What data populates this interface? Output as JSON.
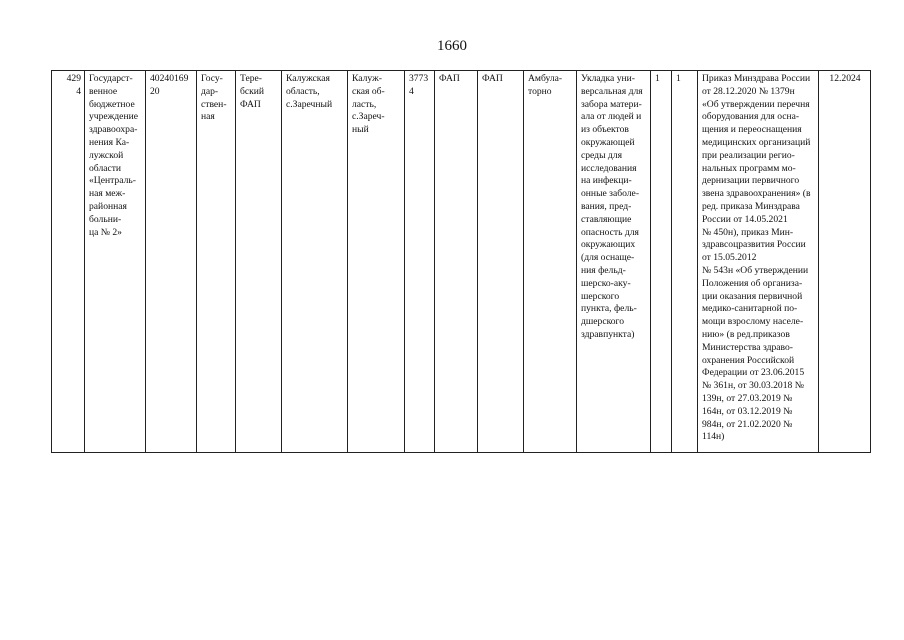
{
  "page_number": "1660",
  "row": {
    "cells": [
      "429\n4",
      "Государст-\nвенное\nбюджетное\nучреждение\nздравоохра-\nнения Ка-\nлужской\nобласти\n«Централь-\nная меж-\nрайонная\nбольни-\nца № 2»",
      "40240169\n20",
      "Госу-\nдар-\nствен-\nная",
      "Тере-\nбский\nФАП",
      "Калужская\nобласть,\nс.Заречный",
      "Калуж-\nская об-\nласть,\nс.Зареч-\nный",
      "3773\n4",
      "ФАП",
      "ФАП",
      "Амбула-\nторно",
      "Укладка уни-\nверсальная для\nзабора матери-\nала от людей и\nиз объектов\nокружающей\nсреды для\nисследования\nна инфекци-\nонные заболе-\nвания, пред-\nставляющие\nопасность для\nокружающих\n(для оснаще-\nния фельд-\nшерско-аку-\nшерского\nпункта, фель-\nдшерского\nздравпункта)",
      "1",
      "1",
      "Приказ Минздрава России\nот 28.12.2020 № 1379н\n«Об утверждении перечня\nоборудования для осна-\nщения и переоснащения\nмедицинских организаций\nпри реализации регио-\nнальных программ мо-\nдернизации первичного\nзвена здравоохранения» (в\nред. приказа Минздрава\nРоссии от 14.05.2021\n№ 450н), приказ Мин-\nздравсоцразвития России\nот 15.05.2012\n№ 543н «Об утверждении\nПоложения об организа-\nции оказания первичной\nмедико-санитарной по-\nмощи взрослому населе-\nнию» (в ред.приказов\nМинистерства здраво-\nохранения Российской\nФедерации от 23.06.2015\n№ 361н, от 30.03.2018 №\n139н, от 27.03.2019 №\n164н, от 03.12.2019 №\n984н, от 21.02.2020 №\n114н)",
      "12.2024"
    ]
  }
}
